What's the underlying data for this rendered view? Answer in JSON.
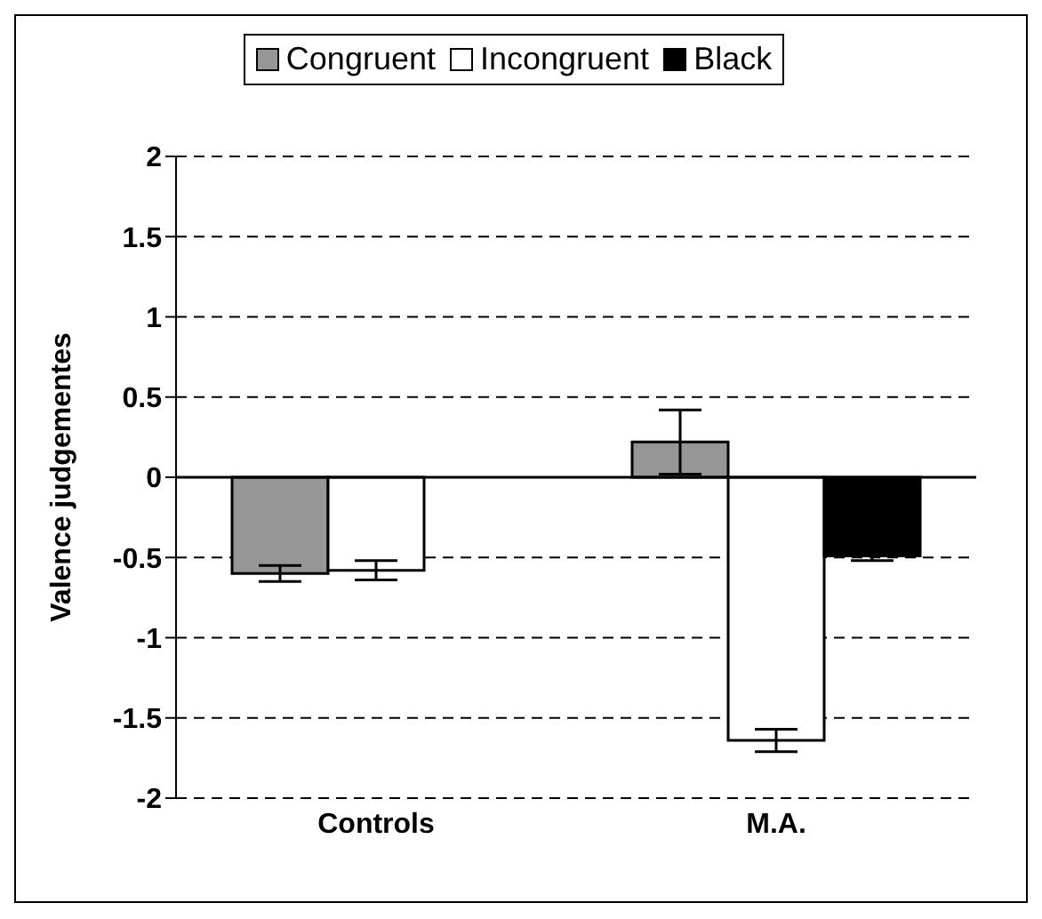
{
  "chart_data": {
    "type": "bar",
    "ylabel": "Valence judgementes",
    "categories": [
      "Controls",
      "M.A."
    ],
    "series": [
      {
        "name": "Congruent",
        "color": "#969696",
        "values": [
          -0.6,
          0.22
        ],
        "errors": [
          0.05,
          0.2
        ]
      },
      {
        "name": "Incongruent",
        "color": "#ffffff",
        "values": [
          -0.58,
          -1.64
        ],
        "errors": [
          0.06,
          0.07
        ]
      },
      {
        "name": "Black",
        "color": "#000000",
        "values": [
          null,
          -0.49
        ],
        "errors": [
          null,
          0.03
        ]
      }
    ],
    "ylim": [
      -2,
      2
    ],
    "yticks": [
      -2,
      -1.5,
      -1,
      -0.5,
      0,
      0.5,
      1,
      1.5,
      2
    ],
    "grid": "y",
    "legend": "top"
  }
}
